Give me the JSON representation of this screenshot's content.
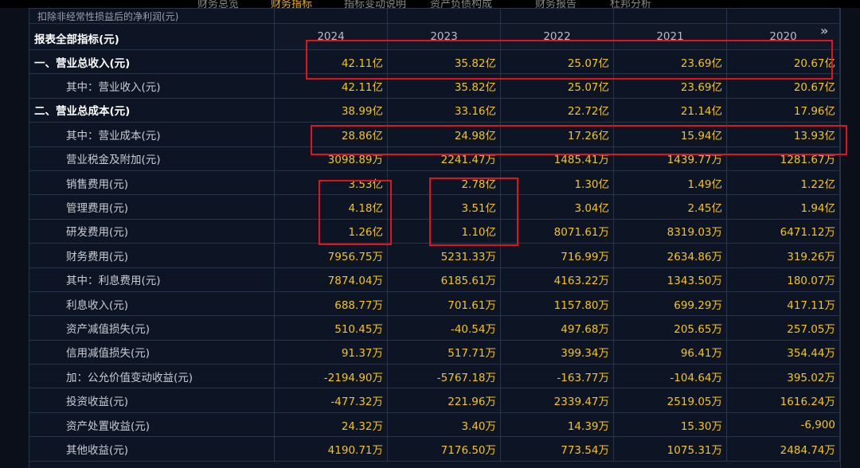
{
  "top_tabs": [
    {
      "label": "财务总览",
      "active": false
    },
    {
      "label": "财务指标",
      "active": true
    },
    {
      "label": "指标变动说明",
      "active": false
    },
    {
      "label": "资产负债构成",
      "active": false
    },
    {
      "label": "财务报告",
      "active": false
    },
    {
      "label": "杜邦分析",
      "active": false
    }
  ],
  "clipped_row": "扣除非经常性损益后的净利润(元)",
  "header": {
    "label": "报表全部指标(元)",
    "years": [
      "2024",
      "2023",
      "2022",
      "2021",
      "2020"
    ]
  },
  "rows": [
    {
      "label": "一、营业总收入(元)",
      "values": [
        "42.11亿",
        "35.82亿",
        "25.07亿",
        "23.69亿",
        "20.67亿"
      ]
    },
    {
      "label": "其中：营业收入(元)",
      "values": [
        "42.11亿",
        "35.82亿",
        "25.07亿",
        "23.69亿",
        "20.67亿"
      ]
    },
    {
      "label": "二、营业总成本(元)",
      "values": [
        "38.99亿",
        "33.16亿",
        "22.72亿",
        "21.14亿",
        "17.96亿"
      ]
    },
    {
      "label": "其中：营业成本(元)",
      "values": [
        "28.86亿",
        "24.98亿",
        "17.26亿",
        "15.94亿",
        "13.93亿"
      ]
    },
    {
      "label": "营业税金及附加(元)",
      "values": [
        "3098.89万",
        "2241.47万",
        "1485.41万",
        "1439.77万",
        "1281.67万"
      ]
    },
    {
      "label": "销售费用(元)",
      "values": [
        "3.53亿",
        "2.78亿",
        "1.30亿",
        "1.49亿",
        "1.22亿"
      ]
    },
    {
      "label": "管理费用(元)",
      "values": [
        "4.18亿",
        "3.51亿",
        "3.04亿",
        "2.45亿",
        "1.94亿"
      ]
    },
    {
      "label": "研发费用(元)",
      "values": [
        "1.26亿",
        "1.10亿",
        "8071.61万",
        "8319.03万",
        "6471.12万"
      ]
    },
    {
      "label": "财务费用(元)",
      "values": [
        "7956.75万",
        "5231.33万",
        "716.99万",
        "2634.86万",
        "319.26万"
      ]
    },
    {
      "label": "其中：利息费用(元)",
      "values": [
        "7874.04万",
        "6185.61万",
        "4163.22万",
        "1343.50万",
        "180.07万"
      ]
    },
    {
      "label": "利息收入(元)",
      "values": [
        "688.77万",
        "701.61万",
        "1157.80万",
        "699.29万",
        "417.11万"
      ]
    },
    {
      "label": "资产减值损失(元)",
      "values": [
        "510.45万",
        "-40.54万",
        "497.68万",
        "205.65万",
        "257.05万"
      ]
    },
    {
      "label": "信用减值损失(元)",
      "values": [
        "91.37万",
        "517.71万",
        "399.34万",
        "96.41万",
        "354.44万"
      ]
    },
    {
      "label": "加：公允价值变动收益(元)",
      "values": [
        "-2194.90万",
        "-5767.18万",
        "-163.77万",
        "-104.64万",
        "395.02万"
      ]
    },
    {
      "label": "投资收益(元)",
      "values": [
        "-477.32万",
        "221.96万",
        "2339.47万",
        "2519.05万",
        "1616.24万"
      ]
    },
    {
      "label": "资产处置收益(元)",
      "values": [
        "24.32万",
        "3.40万",
        "14.39万",
        "15.30万",
        "-6,900"
      ]
    },
    {
      "label": "其他收益(元)",
      "values": [
        "4190.71万",
        "7176.50万",
        "773.54万",
        "1075.31万",
        "2484.74万"
      ]
    }
  ],
  "expand_icon": "double-chevron-right-icon",
  "highlight_color": "#e0141e"
}
